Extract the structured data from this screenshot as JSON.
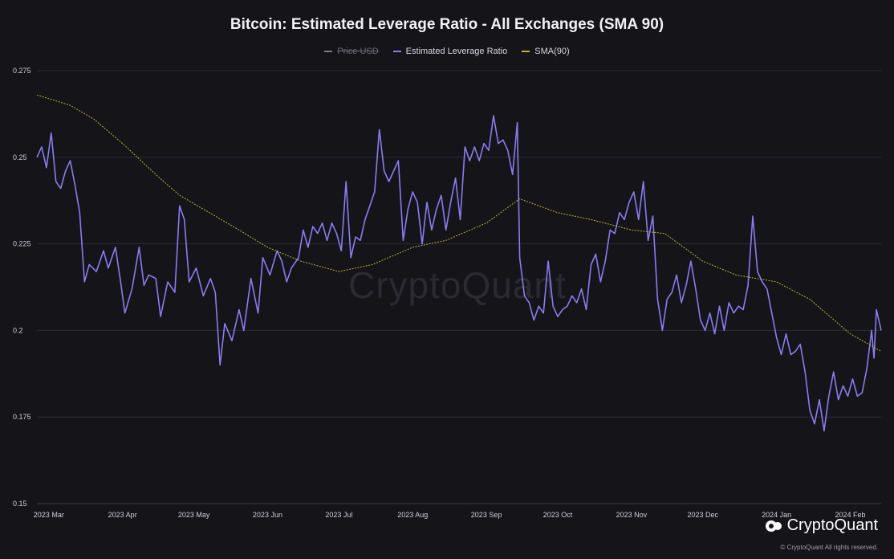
{
  "title": "Bitcoin: Estimated Leverage Ratio - All Exchanges (SMA 90)",
  "legend": [
    {
      "label": "Price USD",
      "color": "#7a7a80",
      "active": false
    },
    {
      "label": "Estimated Leverage Ratio",
      "color": "#8b7cf0",
      "active": true
    },
    {
      "label": "SMA(90)",
      "color": "#b5b53a",
      "active": true
    }
  ],
  "watermark": "CryptoQuant",
  "brand": {
    "name": "CryptoQuant",
    "copyright": "© CryptoQuant All rights reserved."
  },
  "colors": {
    "background": "#141419",
    "elr": "#8b7cf0",
    "sma": "#b5b53a",
    "grid": "#2b2b32"
  },
  "chart_data": {
    "type": "line",
    "title": "Bitcoin: Estimated Leverage Ratio - All Exchanges (SMA 90)",
    "xlabel": "",
    "ylabel": "",
    "ylim": [
      0.15,
      0.275
    ],
    "yticks": [
      0.275,
      0.25,
      0.225,
      0.2,
      0.175,
      0.15
    ],
    "ytick_labels": [
      "0.275",
      "0.25",
      "0.225",
      "0.2",
      "0.175",
      "0.15"
    ],
    "xlim": [
      "2023-02-24",
      "2024-02-14"
    ],
    "xticks": [
      "2023-03-01",
      "2023-04-01",
      "2023-05-01",
      "2023-06-01",
      "2023-07-01",
      "2023-08-01",
      "2023-09-01",
      "2023-10-01",
      "2023-11-01",
      "2023-12-01",
      "2024-01-01",
      "2024-02-01"
    ],
    "xtick_labels": [
      "2023 Mar",
      "2023 Apr",
      "2023 May",
      "2023 Jun",
      "2023 Jul",
      "2023 Aug",
      "2023 Sep",
      "2023 Oct",
      "2023 Nov",
      "2023 Dec",
      "2024 Jan",
      "2024 Feb"
    ],
    "grid": true,
    "legend_position": "top",
    "series": [
      {
        "name": "Estimated Leverage Ratio",
        "color": "#8b7cf0",
        "points": [
          [
            "2023-02-24",
            0.25
          ],
          [
            "2023-02-26",
            0.253
          ],
          [
            "2023-02-28",
            0.247
          ],
          [
            "2023-03-02",
            0.257
          ],
          [
            "2023-03-04",
            0.243
          ],
          [
            "2023-03-06",
            0.241
          ],
          [
            "2023-03-08",
            0.246
          ],
          [
            "2023-03-10",
            0.249
          ],
          [
            "2023-03-12",
            0.242
          ],
          [
            "2023-03-14",
            0.234
          ],
          [
            "2023-03-16",
            0.214
          ],
          [
            "2023-03-18",
            0.219
          ],
          [
            "2023-03-21",
            0.217
          ],
          [
            "2023-03-24",
            0.223
          ],
          [
            "2023-03-26",
            0.218
          ],
          [
            "2023-03-29",
            0.224
          ],
          [
            "2023-03-31",
            0.215
          ],
          [
            "2023-04-02",
            0.205
          ],
          [
            "2023-04-05",
            0.212
          ],
          [
            "2023-04-08",
            0.224
          ],
          [
            "2023-04-10",
            0.213
          ],
          [
            "2023-04-12",
            0.216
          ],
          [
            "2023-04-15",
            0.215
          ],
          [
            "2023-04-17",
            0.204
          ],
          [
            "2023-04-20",
            0.214
          ],
          [
            "2023-04-23",
            0.211
          ],
          [
            "2023-04-25",
            0.236
          ],
          [
            "2023-04-27",
            0.232
          ],
          [
            "2023-04-29",
            0.214
          ],
          [
            "2023-05-02",
            0.218
          ],
          [
            "2023-05-05",
            0.21
          ],
          [
            "2023-05-08",
            0.215
          ],
          [
            "2023-05-10",
            0.211
          ],
          [
            "2023-05-12",
            0.19
          ],
          [
            "2023-05-14",
            0.202
          ],
          [
            "2023-05-17",
            0.197
          ],
          [
            "2023-05-20",
            0.206
          ],
          [
            "2023-05-22",
            0.2
          ],
          [
            "2023-05-25",
            0.215
          ],
          [
            "2023-05-28",
            0.205
          ],
          [
            "2023-05-30",
            0.221
          ],
          [
            "2023-06-02",
            0.216
          ],
          [
            "2023-06-05",
            0.223
          ],
          [
            "2023-06-07",
            0.22
          ],
          [
            "2023-06-09",
            0.214
          ],
          [
            "2023-06-11",
            0.218
          ],
          [
            "2023-06-14",
            0.221
          ],
          [
            "2023-06-16",
            0.229
          ],
          [
            "2023-06-18",
            0.224
          ],
          [
            "2023-06-20",
            0.23
          ],
          [
            "2023-06-22",
            0.228
          ],
          [
            "2023-06-24",
            0.231
          ],
          [
            "2023-06-26",
            0.226
          ],
          [
            "2023-06-28",
            0.231
          ],
          [
            "2023-06-30",
            0.228
          ],
          [
            "2023-07-02",
            0.223
          ],
          [
            "2023-07-04",
            0.243
          ],
          [
            "2023-07-06",
            0.221
          ],
          [
            "2023-07-08",
            0.227
          ],
          [
            "2023-07-10",
            0.226
          ],
          [
            "2023-07-12",
            0.232
          ],
          [
            "2023-07-14",
            0.236
          ],
          [
            "2023-07-16",
            0.24
          ],
          [
            "2023-07-18",
            0.258
          ],
          [
            "2023-07-20",
            0.246
          ],
          [
            "2023-07-22",
            0.243
          ],
          [
            "2023-07-24",
            0.246
          ],
          [
            "2023-07-26",
            0.249
          ],
          [
            "2023-07-28",
            0.226
          ],
          [
            "2023-07-30",
            0.235
          ],
          [
            "2023-08-01",
            0.24
          ],
          [
            "2023-08-03",
            0.237
          ],
          [
            "2023-08-05",
            0.225
          ],
          [
            "2023-08-07",
            0.237
          ],
          [
            "2023-08-09",
            0.229
          ],
          [
            "2023-08-11",
            0.235
          ],
          [
            "2023-08-13",
            0.239
          ],
          [
            "2023-08-15",
            0.229
          ],
          [
            "2023-08-17",
            0.237
          ],
          [
            "2023-08-19",
            0.244
          ],
          [
            "2023-08-21",
            0.232
          ],
          [
            "2023-08-23",
            0.253
          ],
          [
            "2023-08-25",
            0.249
          ],
          [
            "2023-08-27",
            0.253
          ],
          [
            "2023-08-29",
            0.249
          ],
          [
            "2023-08-31",
            0.254
          ],
          [
            "2023-09-02",
            0.252
          ],
          [
            "2023-09-04",
            0.262
          ],
          [
            "2023-09-06",
            0.254
          ],
          [
            "2023-09-08",
            0.255
          ],
          [
            "2023-09-10",
            0.252
          ],
          [
            "2023-09-12",
            0.245
          ],
          [
            "2023-09-14",
            0.26
          ],
          [
            "2023-09-15",
            0.221
          ],
          [
            "2023-09-17",
            0.21
          ],
          [
            "2023-09-19",
            0.208
          ],
          [
            "2023-09-21",
            0.203
          ],
          [
            "2023-09-23",
            0.207
          ],
          [
            "2023-09-25",
            0.205
          ],
          [
            "2023-09-27",
            0.22
          ],
          [
            "2023-09-29",
            0.207
          ],
          [
            "2023-10-01",
            0.204
          ],
          [
            "2023-10-03",
            0.206
          ],
          [
            "2023-10-05",
            0.207
          ],
          [
            "2023-10-07",
            0.21
          ],
          [
            "2023-10-09",
            0.208
          ],
          [
            "2023-10-11",
            0.212
          ],
          [
            "2023-10-13",
            0.206
          ],
          [
            "2023-10-15",
            0.219
          ],
          [
            "2023-10-17",
            0.222
          ],
          [
            "2023-10-19",
            0.214
          ],
          [
            "2023-10-21",
            0.22
          ],
          [
            "2023-10-23",
            0.229
          ],
          [
            "2023-10-25",
            0.228
          ],
          [
            "2023-10-27",
            0.234
          ],
          [
            "2023-10-29",
            0.232
          ],
          [
            "2023-10-31",
            0.237
          ],
          [
            "2023-11-02",
            0.24
          ],
          [
            "2023-11-04",
            0.232
          ],
          [
            "2023-11-06",
            0.243
          ],
          [
            "2023-11-08",
            0.226
          ],
          [
            "2023-11-10",
            0.233
          ],
          [
            "2023-11-12",
            0.209
          ],
          [
            "2023-11-14",
            0.2
          ],
          [
            "2023-11-16",
            0.209
          ],
          [
            "2023-11-18",
            0.211
          ],
          [
            "2023-11-20",
            0.216
          ],
          [
            "2023-11-22",
            0.208
          ],
          [
            "2023-11-24",
            0.213
          ],
          [
            "2023-11-26",
            0.22
          ],
          [
            "2023-11-28",
            0.212
          ],
          [
            "2023-11-30",
            0.203
          ],
          [
            "2023-12-02",
            0.2
          ],
          [
            "2023-12-04",
            0.205
          ],
          [
            "2023-12-06",
            0.199
          ],
          [
            "2023-12-08",
            0.207
          ],
          [
            "2023-12-10",
            0.2
          ],
          [
            "2023-12-12",
            0.208
          ],
          [
            "2023-12-14",
            0.205
          ],
          [
            "2023-12-16",
            0.207
          ],
          [
            "2023-12-18",
            0.206
          ],
          [
            "2023-12-20",
            0.213
          ],
          [
            "2023-12-22",
            0.233
          ],
          [
            "2023-12-24",
            0.217
          ],
          [
            "2023-12-26",
            0.214
          ],
          [
            "2023-12-28",
            0.212
          ],
          [
            "2023-12-30",
            0.205
          ],
          [
            "2024-01-01",
            0.198
          ],
          [
            "2024-01-03",
            0.193
          ],
          [
            "2024-01-05",
            0.199
          ],
          [
            "2024-01-07",
            0.193
          ],
          [
            "2024-01-09",
            0.194
          ],
          [
            "2024-01-11",
            0.196
          ],
          [
            "2024-01-13",
            0.188
          ],
          [
            "2024-01-15",
            0.177
          ],
          [
            "2024-01-17",
            0.173
          ],
          [
            "2024-01-19",
            0.18
          ],
          [
            "2024-01-21",
            0.171
          ],
          [
            "2024-01-23",
            0.181
          ],
          [
            "2024-01-25",
            0.188
          ],
          [
            "2024-01-27",
            0.18
          ],
          [
            "2024-01-29",
            0.184
          ],
          [
            "2024-01-31",
            0.181
          ],
          [
            "2024-02-02",
            0.186
          ],
          [
            "2024-02-04",
            0.181
          ],
          [
            "2024-02-06",
            0.182
          ],
          [
            "2024-02-08",
            0.189
          ],
          [
            "2024-02-10",
            0.2
          ],
          [
            "2024-02-11",
            0.192
          ],
          [
            "2024-02-12",
            0.206
          ],
          [
            "2024-02-14",
            0.2
          ]
        ]
      },
      {
        "name": "SMA(90)",
        "color": "#b5b53a",
        "points": [
          [
            "2023-02-24",
            0.268
          ],
          [
            "2023-03-10",
            0.265
          ],
          [
            "2023-03-20",
            0.261
          ],
          [
            "2023-04-01",
            0.254
          ],
          [
            "2023-04-15",
            0.245
          ],
          [
            "2023-04-25",
            0.239
          ],
          [
            "2023-05-10",
            0.233
          ],
          [
            "2023-05-20",
            0.229
          ],
          [
            "2023-06-01",
            0.224
          ],
          [
            "2023-06-15",
            0.22
          ],
          [
            "2023-07-01",
            0.217
          ],
          [
            "2023-07-15",
            0.219
          ],
          [
            "2023-08-01",
            0.224
          ],
          [
            "2023-08-15",
            0.226
          ],
          [
            "2023-09-01",
            0.231
          ],
          [
            "2023-09-15",
            0.238
          ],
          [
            "2023-10-01",
            0.234
          ],
          [
            "2023-10-15",
            0.232
          ],
          [
            "2023-11-01",
            0.229
          ],
          [
            "2023-11-15",
            0.228
          ],
          [
            "2023-12-01",
            0.22
          ],
          [
            "2023-12-15",
            0.216
          ],
          [
            "2024-01-01",
            0.214
          ],
          [
            "2024-01-15",
            0.209
          ],
          [
            "2024-02-01",
            0.199
          ],
          [
            "2024-02-14",
            0.194
          ]
        ]
      }
    ]
  }
}
